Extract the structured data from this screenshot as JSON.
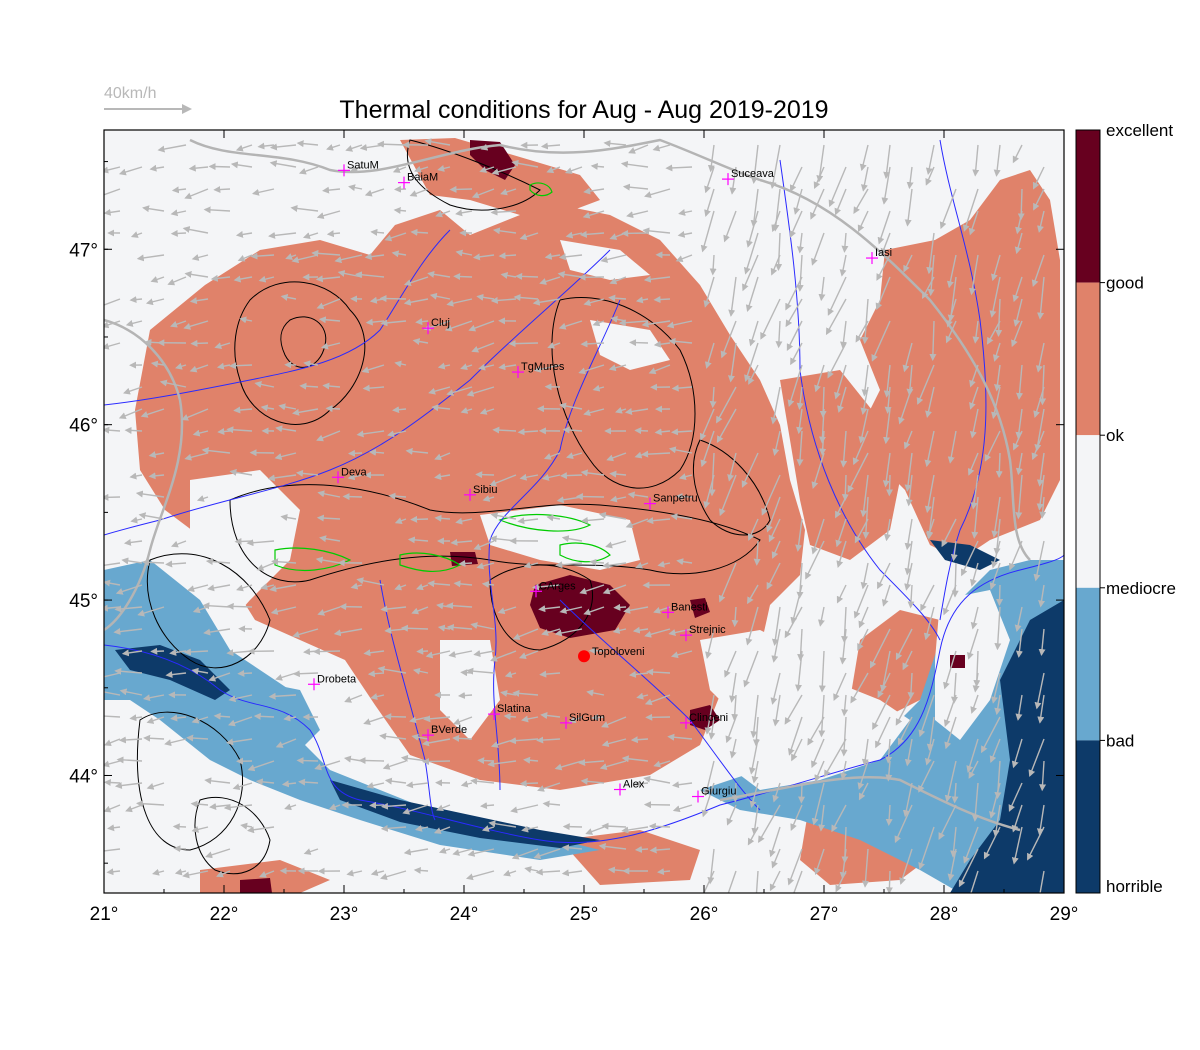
{
  "title": "Thermal conditions for Aug - Aug  2019-2019",
  "wind_scale": {
    "label": "40km/h"
  },
  "axes": {
    "lon_ticks": [
      "21°",
      "22°",
      "23°",
      "24°",
      "25°",
      "26°",
      "27°",
      "28°",
      "29°"
    ],
    "lat_ticks": [
      "47°",
      "46°",
      "45°",
      "44°"
    ]
  },
  "colorbar": {
    "classes": [
      {
        "label": "excellent",
        "color": "#67001f"
      },
      {
        "label": "good",
        "color": "#e0826a"
      },
      {
        "label": "ok",
        "color": "#f4f5f7"
      },
      {
        "label": "mediocre",
        "color": "#68a8cf"
      },
      {
        "label": "bad",
        "color": "#0d3a69"
      },
      {
        "label": "horrible",
        "color": ""
      }
    ]
  },
  "cities": [
    {
      "name": "SatuM",
      "lon": 23.0,
      "lat": 47.45
    },
    {
      "name": "BaiaM",
      "lon": 23.5,
      "lat": 47.38
    },
    {
      "name": "Suceava",
      "lon": 26.2,
      "lat": 47.4
    },
    {
      "name": "Iasi",
      "lon": 27.4,
      "lat": 46.95
    },
    {
      "name": "Cluj",
      "lon": 23.7,
      "lat": 46.55
    },
    {
      "name": "TgMures",
      "lon": 24.45,
      "lat": 46.3
    },
    {
      "name": "Deva",
      "lon": 22.95,
      "lat": 45.7
    },
    {
      "name": "Sibiu",
      "lon": 24.05,
      "lat": 45.6
    },
    {
      "name": "Sanpetru",
      "lon": 25.55,
      "lat": 45.55
    },
    {
      "name": "CArges",
      "lon": 24.6,
      "lat": 45.05
    },
    {
      "name": "Banesti",
      "lon": 25.7,
      "lat": 44.93
    },
    {
      "name": "Strejnic",
      "lon": 25.85,
      "lat": 44.8
    },
    {
      "name": "Drobeta",
      "lon": 22.75,
      "lat": 44.52
    },
    {
      "name": "Slatina",
      "lon": 24.25,
      "lat": 44.35
    },
    {
      "name": "SilGum",
      "lon": 24.85,
      "lat": 44.3
    },
    {
      "name": "Clinceni",
      "lon": 25.85,
      "lat": 44.3
    },
    {
      "name": "BVerde",
      "lon": 23.7,
      "lat": 44.23
    },
    {
      "name": "Alex",
      "lon": 25.3,
      "lat": 43.92
    },
    {
      "name": "Giurgiu",
      "lon": 25.95,
      "lat": 43.88
    }
  ],
  "launch_site": {
    "name": "Topoloveni",
    "lon": 25.0,
    "lat": 44.68,
    "color": "#ff0000"
  },
  "colors": {
    "excellent": "#67001f",
    "good": "#e0826a",
    "ok": "#f4f5f7",
    "mediocre": "#68a8cf",
    "bad": "#0d3a69",
    "rivers": "#2a2aff",
    "borders": "#b4b4b4",
    "arrows": "#b8b8b8",
    "city_marker": "#ff00ff",
    "cold_contour": "#00cc00"
  }
}
